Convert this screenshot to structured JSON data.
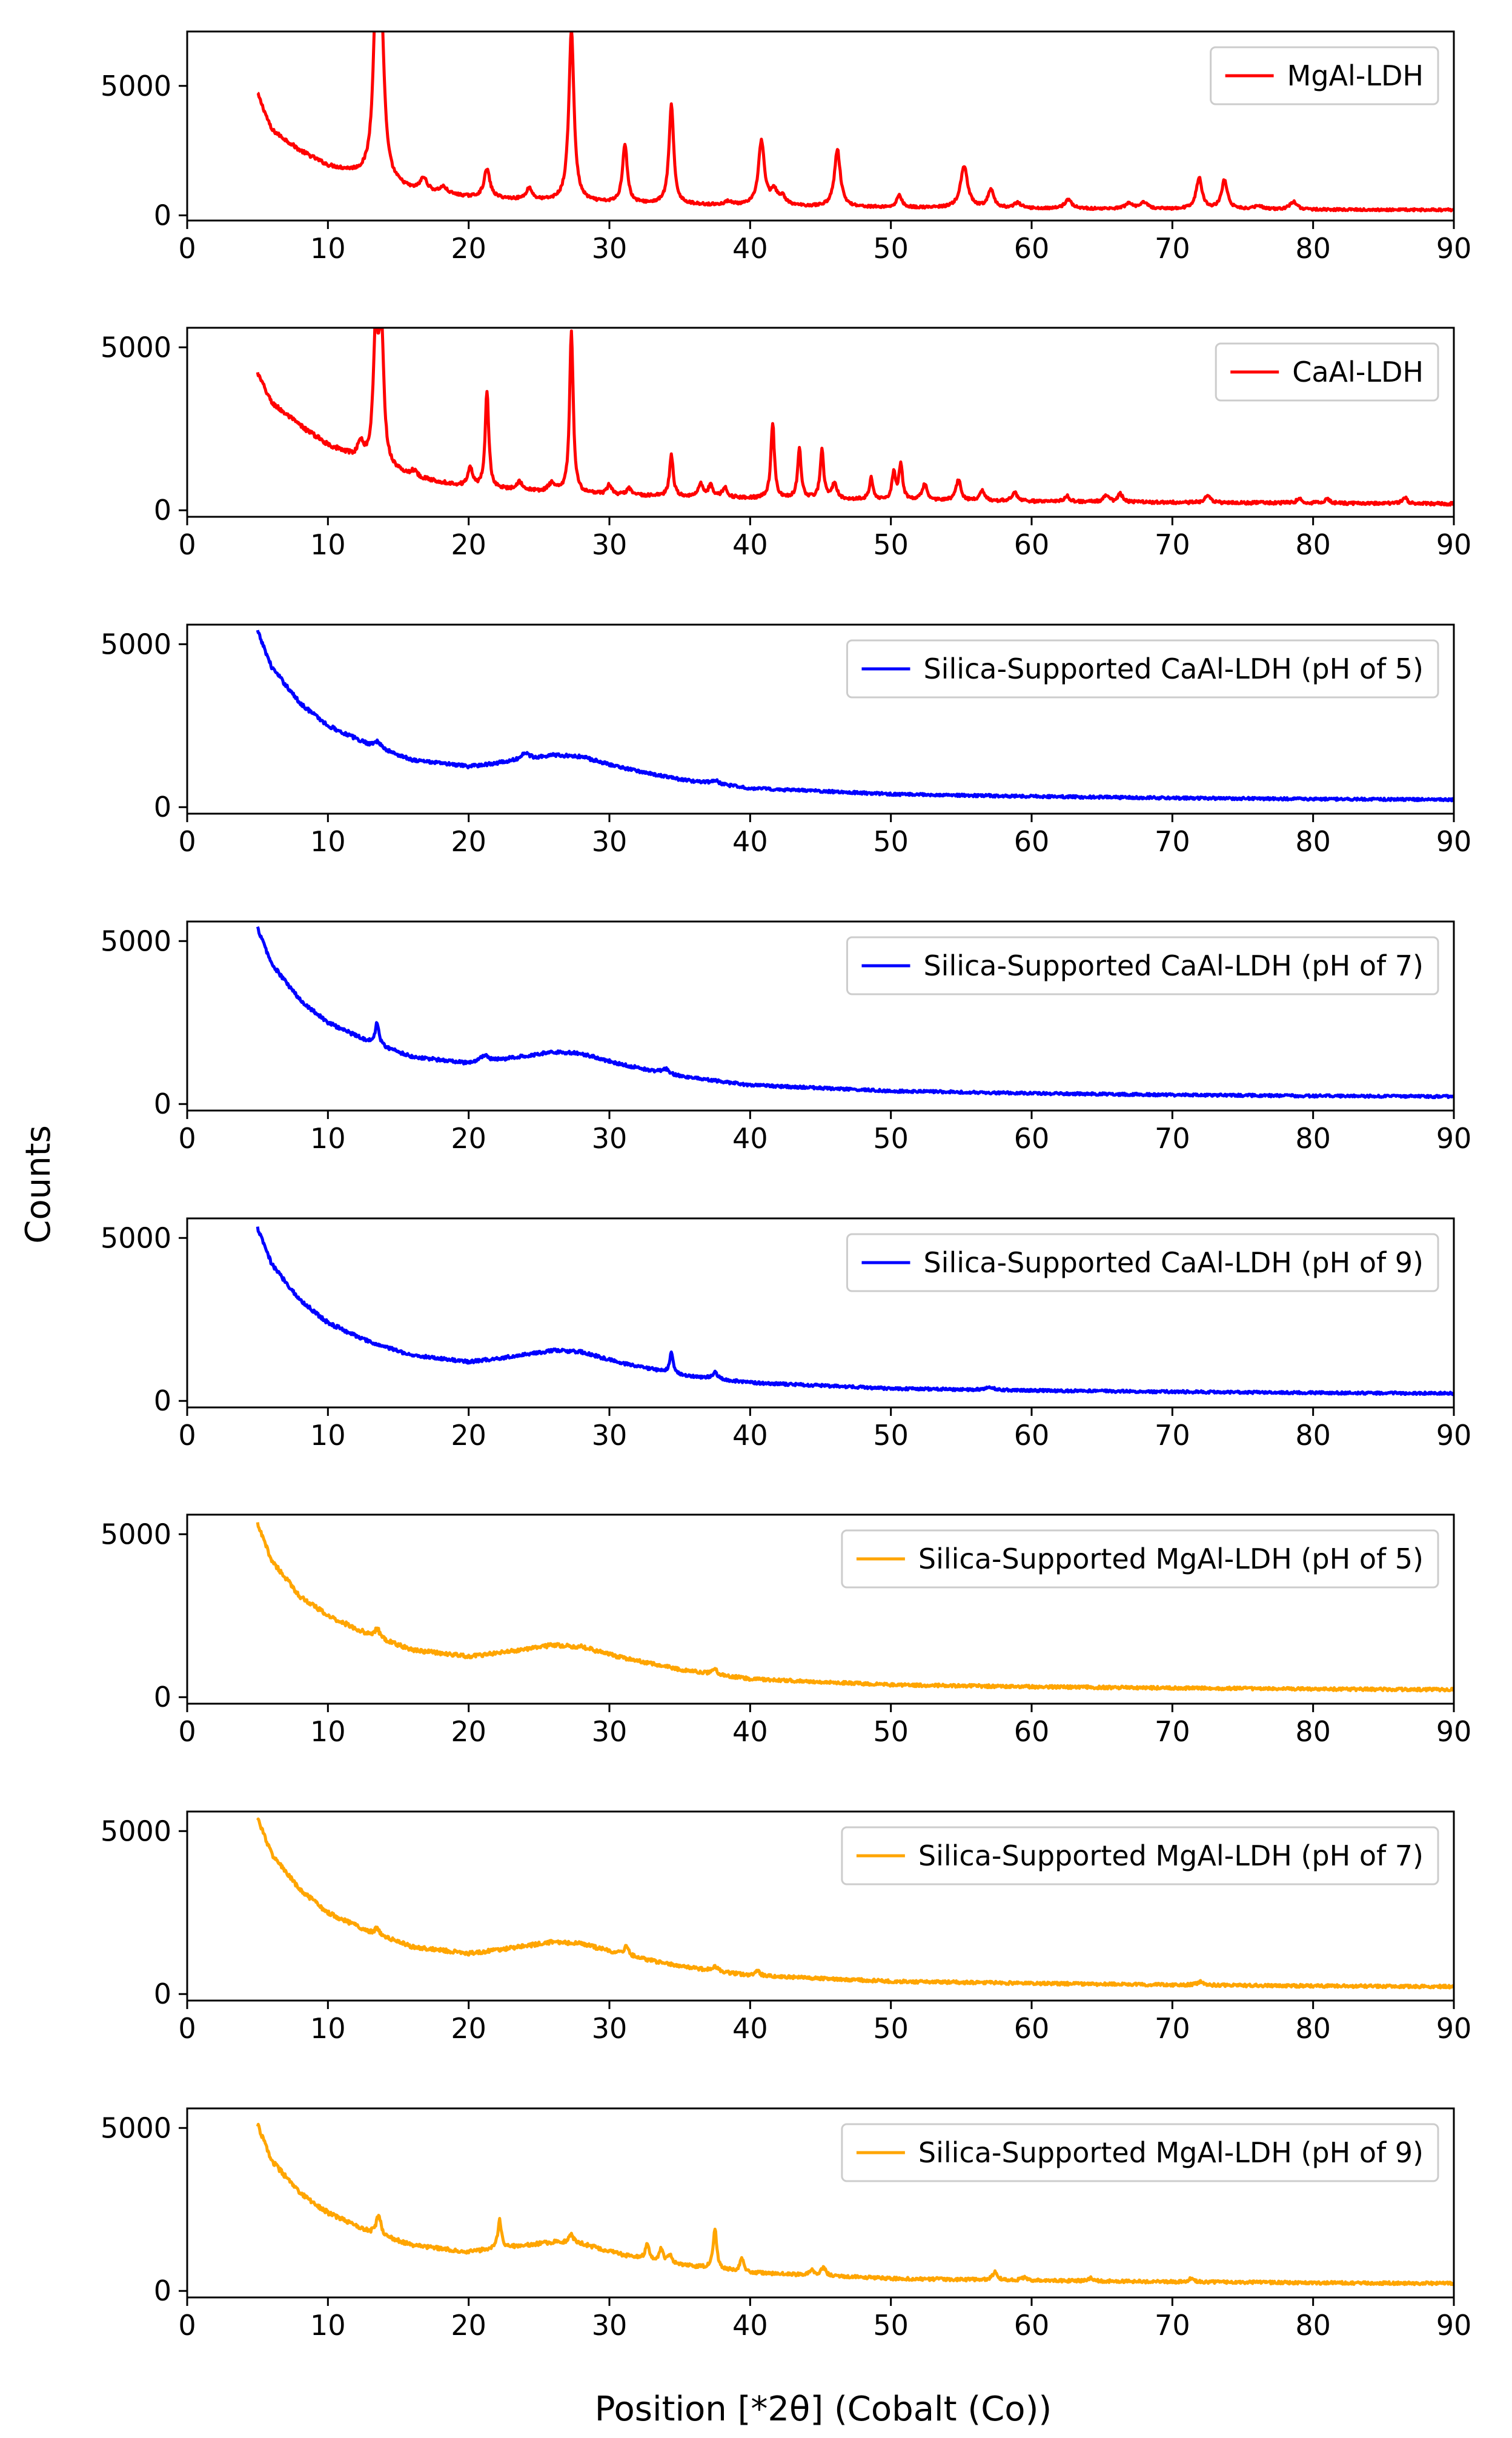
{
  "chart_data": {
    "type": "line",
    "xlabel": "Position [*2θ] (Cobalt (Co))",
    "ylabel": "Counts",
    "xlim": [
      0,
      90
    ],
    "x_ticks": [
      "0",
      "10",
      "20",
      "30",
      "40",
      "50",
      "60",
      "70",
      "80",
      "90"
    ],
    "x_tick_values": [
      0,
      10,
      20,
      30,
      40,
      50,
      60,
      70,
      80,
      90
    ],
    "y_ticks": [
      "0",
      "5000"
    ],
    "y_tick_values": [
      0,
      5000
    ],
    "legend_position": "top-right",
    "panels": [
      {
        "name": "MgAl-LDH",
        "color": "#ff0000",
        "ylim": [
          -200,
          7100
        ],
        "x_start": 5,
        "baseline": [
          [
            5,
            4700
          ],
          [
            6,
            3300
          ],
          [
            8,
            2500
          ],
          [
            10,
            1900
          ],
          [
            12,
            1600
          ],
          [
            14,
            1300
          ],
          [
            16,
            950
          ],
          [
            20,
            700
          ],
          [
            25,
            560
          ],
          [
            30,
            470
          ],
          [
            40,
            360
          ],
          [
            50,
            300
          ],
          [
            60,
            260
          ],
          [
            70,
            240
          ],
          [
            80,
            220
          ],
          [
            90,
            210
          ]
        ],
        "peaks": [
          [
            13.4,
            5600,
            0.25
          ],
          [
            13.8,
            5400,
            0.25
          ],
          [
            16.8,
            500,
            0.3
          ],
          [
            18.2,
            250,
            0.3
          ],
          [
            21.3,
            1100,
            0.25
          ],
          [
            24.3,
            450,
            0.25
          ],
          [
            27.3,
            6600,
            0.22
          ],
          [
            31.1,
            2300,
            0.2
          ],
          [
            34.4,
            3800,
            0.2
          ],
          [
            38.5,
            150,
            0.3
          ],
          [
            40.8,
            2500,
            0.25
          ],
          [
            41.7,
            500,
            0.3
          ],
          [
            42.3,
            300,
            0.3
          ],
          [
            46.2,
            2200,
            0.25
          ],
          [
            50.6,
            500,
            0.2
          ],
          [
            55.2,
            1600,
            0.3
          ],
          [
            57.1,
            700,
            0.25
          ],
          [
            59.0,
            200,
            0.3
          ],
          [
            62.6,
            350,
            0.3
          ],
          [
            66.9,
            200,
            0.3
          ],
          [
            68.0,
            250,
            0.3
          ],
          [
            71.9,
            1200,
            0.25
          ],
          [
            73.7,
            1100,
            0.25
          ],
          [
            76.1,
            150,
            0.3
          ],
          [
            78.6,
            300,
            0.3
          ]
        ],
        "noise": 70
      },
      {
        "name": "CaAl-LDH",
        "color": "#ff0000",
        "ylim": [
          -200,
          5600
        ],
        "x_start": 5,
        "baseline": [
          [
            5,
            4200
          ],
          [
            6,
            3300
          ],
          [
            8,
            2600
          ],
          [
            10,
            2000
          ],
          [
            12,
            1600
          ],
          [
            14,
            1300
          ],
          [
            16,
            1000
          ],
          [
            20,
            700
          ],
          [
            25,
            560
          ],
          [
            30,
            470
          ],
          [
            40,
            370
          ],
          [
            50,
            310
          ],
          [
            60,
            270
          ],
          [
            70,
            240
          ],
          [
            80,
            220
          ],
          [
            90,
            200
          ]
        ],
        "peaks": [
          [
            12.3,
            500,
            0.2
          ],
          [
            13.4,
            4000,
            0.2
          ],
          [
            13.8,
            4000,
            0.2
          ],
          [
            16.1,
            200,
            0.3
          ],
          [
            20.1,
            600,
            0.2
          ],
          [
            21.3,
            3000,
            0.15
          ],
          [
            23.6,
            250,
            0.3
          ],
          [
            25.9,
            250,
            0.3
          ],
          [
            27.3,
            5000,
            0.15
          ],
          [
            30.0,
            300,
            0.2
          ],
          [
            31.4,
            200,
            0.2
          ],
          [
            34.4,
            1300,
            0.15
          ],
          [
            36.5,
            400,
            0.2
          ],
          [
            37.2,
            350,
            0.2
          ],
          [
            38.2,
            300,
            0.2
          ],
          [
            41.6,
            2300,
            0.15
          ],
          [
            43.5,
            1500,
            0.15
          ],
          [
            45.1,
            1500,
            0.15
          ],
          [
            46.0,
            500,
            0.2
          ],
          [
            48.6,
            650,
            0.15
          ],
          [
            50.2,
            800,
            0.15
          ],
          [
            50.7,
            1100,
            0.15
          ],
          [
            52.4,
            500,
            0.2
          ],
          [
            54.8,
            650,
            0.2
          ],
          [
            56.5,
            300,
            0.2
          ],
          [
            58.8,
            300,
            0.2
          ],
          [
            62.5,
            200,
            0.2
          ],
          [
            65.3,
            200,
            0.2
          ],
          [
            66.3,
            250,
            0.2
          ],
          [
            72.5,
            250,
            0.2
          ],
          [
            79.0,
            150,
            0.2
          ],
          [
            81.0,
            150,
            0.2
          ],
          [
            86.5,
            200,
            0.2
          ]
        ],
        "noise": 70
      },
      {
        "name": "Silica-Supported CaAl-LDH (pH of 5)",
        "color": "#0000ff",
        "ylim": [
          -200,
          5600
        ],
        "x_start": 5,
        "baseline": [
          [
            5,
            5400
          ],
          [
            6,
            4300
          ],
          [
            8,
            3200
          ],
          [
            10,
            2500
          ],
          [
            13,
            1900
          ],
          [
            16,
            1450
          ],
          [
            20,
            1250
          ],
          [
            22,
            1350
          ],
          [
            26,
            1600
          ],
          [
            28,
            1550
          ],
          [
            31,
            1200
          ],
          [
            35,
            850
          ],
          [
            40,
            580
          ],
          [
            50,
            400
          ],
          [
            60,
            330
          ],
          [
            70,
            280
          ],
          [
            80,
            250
          ],
          [
            90,
            230
          ]
        ],
        "peaks": [
          [
            13.5,
            200,
            0.3
          ],
          [
            24.0,
            200,
            0.3
          ],
          [
            37.5,
            120,
            0.3
          ]
        ],
        "noise": 60
      },
      {
        "name": "Silica-Supported CaAl-LDH (pH of 7)",
        "color": "#0000ff",
        "ylim": [
          -200,
          5600
        ],
        "x_start": 5,
        "baseline": [
          [
            5,
            5400
          ],
          [
            6,
            4300
          ],
          [
            8,
            3200
          ],
          [
            10,
            2500
          ],
          [
            13,
            1900
          ],
          [
            16,
            1450
          ],
          [
            20,
            1250
          ],
          [
            22,
            1350
          ],
          [
            26,
            1600
          ],
          [
            28,
            1550
          ],
          [
            31,
            1200
          ],
          [
            35,
            850
          ],
          [
            40,
            580
          ],
          [
            50,
            400
          ],
          [
            60,
            330
          ],
          [
            70,
            280
          ],
          [
            80,
            250
          ],
          [
            90,
            230
          ]
        ],
        "peaks": [
          [
            13.5,
            700,
            0.15
          ],
          [
            21.1,
            200,
            0.3
          ],
          [
            34.0,
            150,
            0.3
          ]
        ],
        "noise": 60
      },
      {
        "name": "Silica-Supported CaAl-LDH (pH of 9)",
        "color": "#0000ff",
        "ylim": [
          -200,
          5600
        ],
        "x_start": 5,
        "baseline": [
          [
            5,
            5300
          ],
          [
            6,
            4200
          ],
          [
            8,
            3100
          ],
          [
            10,
            2400
          ],
          [
            13,
            1800
          ],
          [
            16,
            1400
          ],
          [
            20,
            1200
          ],
          [
            22,
            1300
          ],
          [
            26,
            1550
          ],
          [
            28,
            1500
          ],
          [
            31,
            1150
          ],
          [
            35,
            800
          ],
          [
            40,
            560
          ],
          [
            50,
            380
          ],
          [
            60,
            320
          ],
          [
            70,
            280
          ],
          [
            80,
            250
          ],
          [
            90,
            230
          ]
        ],
        "peaks": [
          [
            34.4,
            600,
            0.15
          ],
          [
            37.5,
            200,
            0.2
          ],
          [
            57.0,
            100,
            0.3
          ]
        ],
        "noise": 60
      },
      {
        "name": "Silica-Supported MgAl-LDH (pH of 5)",
        "color": "#ffa500",
        "ylim": [
          -200,
          5600
        ],
        "x_start": 5,
        "baseline": [
          [
            5,
            5300
          ],
          [
            6,
            4200
          ],
          [
            8,
            3100
          ],
          [
            10,
            2500
          ],
          [
            13,
            1900
          ],
          [
            16,
            1450
          ],
          [
            20,
            1250
          ],
          [
            22,
            1350
          ],
          [
            26,
            1600
          ],
          [
            28,
            1550
          ],
          [
            31,
            1200
          ],
          [
            35,
            850
          ],
          [
            40,
            560
          ],
          [
            50,
            380
          ],
          [
            60,
            320
          ],
          [
            70,
            280
          ],
          [
            80,
            250
          ],
          [
            90,
            230
          ]
        ],
        "peaks": [
          [
            13.5,
            300,
            0.2
          ],
          [
            37.5,
            150,
            0.2
          ]
        ],
        "noise": 70
      },
      {
        "name": "Silica-Supported MgAl-LDH (pH of 7)",
        "color": "#ffa500",
        "ylim": [
          -200,
          5600
        ],
        "x_start": 5,
        "baseline": [
          [
            5,
            5400
          ],
          [
            6,
            4300
          ],
          [
            8,
            3200
          ],
          [
            10,
            2500
          ],
          [
            13,
            1900
          ],
          [
            16,
            1450
          ],
          [
            20,
            1250
          ],
          [
            22,
            1350
          ],
          [
            26,
            1600
          ],
          [
            28,
            1550
          ],
          [
            31,
            1200
          ],
          [
            35,
            850
          ],
          [
            40,
            570
          ],
          [
            50,
            390
          ],
          [
            60,
            330
          ],
          [
            70,
            280
          ],
          [
            80,
            250
          ],
          [
            90,
            230
          ]
        ],
        "peaks": [
          [
            13.5,
            200,
            0.2
          ],
          [
            31.2,
            300,
            0.2
          ],
          [
            37.5,
            150,
            0.2
          ],
          [
            40.5,
            150,
            0.2
          ],
          [
            72.0,
            100,
            0.3
          ]
        ],
        "noise": 70
      },
      {
        "name": "Silica-Supported MgAl-LDH (pH of 9)",
        "color": "#ffa500",
        "ylim": [
          -200,
          5600
        ],
        "x_start": 5,
        "baseline": [
          [
            5,
            5100
          ],
          [
            6,
            4000
          ],
          [
            8,
            3000
          ],
          [
            10,
            2400
          ],
          [
            13,
            1800
          ],
          [
            16,
            1400
          ],
          [
            20,
            1200
          ],
          [
            22,
            1300
          ],
          [
            26,
            1500
          ],
          [
            28,
            1450
          ],
          [
            31,
            1100
          ],
          [
            35,
            800
          ],
          [
            40,
            560
          ],
          [
            50,
            380
          ],
          [
            60,
            320
          ],
          [
            70,
            280
          ],
          [
            80,
            250
          ],
          [
            90,
            230
          ]
        ],
        "peaks": [
          [
            13.6,
            600,
            0.2
          ],
          [
            22.2,
            900,
            0.15
          ],
          [
            27.3,
            250,
            0.2
          ],
          [
            32.7,
            500,
            0.15
          ],
          [
            33.7,
            400,
            0.15
          ],
          [
            34.3,
            250,
            0.15
          ],
          [
            37.5,
            1200,
            0.15
          ],
          [
            39.4,
            450,
            0.15
          ],
          [
            44.4,
            150,
            0.2
          ],
          [
            45.2,
            250,
            0.2
          ],
          [
            57.4,
            250,
            0.2
          ],
          [
            59.5,
            100,
            0.2
          ],
          [
            64.2,
            100,
            0.2
          ],
          [
            71.3,
            100,
            0.2
          ]
        ],
        "noise": 70
      }
    ]
  }
}
